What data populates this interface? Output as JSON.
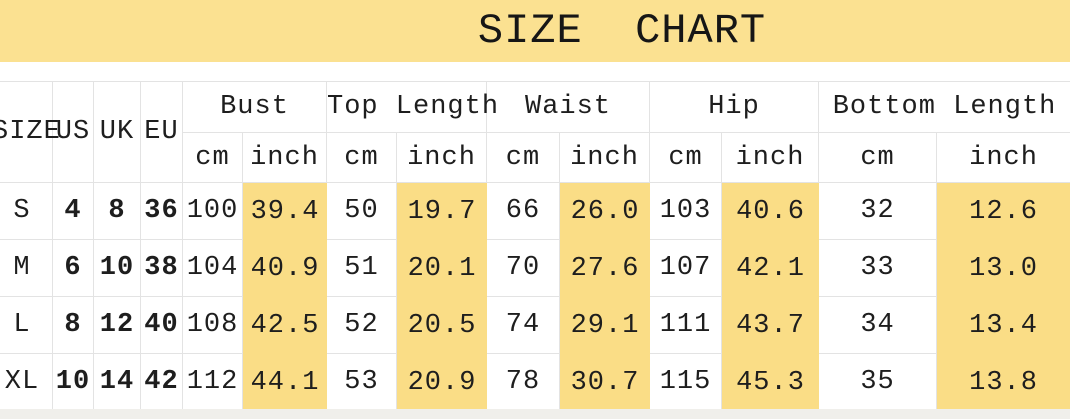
{
  "banner": {
    "title": "SIZE  CHART",
    "background": "#FBE191"
  },
  "table": {
    "corner_headers": [
      "SIZE",
      "US",
      "UK",
      "EU"
    ],
    "groups": [
      {
        "label": "Bust",
        "units": [
          "cm",
          "inch"
        ]
      },
      {
        "label": "Top Length",
        "units": [
          "cm",
          "inch"
        ]
      },
      {
        "label": "Waist",
        "units": [
          "cm",
          "inch"
        ]
      },
      {
        "label": "Hip",
        "units": [
          "cm",
          "inch"
        ]
      },
      {
        "label": "Bottom Length",
        "units": [
          "cm",
          "inch"
        ]
      }
    ],
    "rows": [
      {
        "size": "S",
        "values": [
          "4",
          "8",
          "36",
          "100",
          "39.4",
          "50",
          "19.7",
          "66",
          "26.0",
          "103",
          "40.6",
          "32",
          "12.6"
        ]
      },
      {
        "size": "M",
        "values": [
          "6",
          "10",
          "38",
          "104",
          "40.9",
          "51",
          "20.1",
          "70",
          "27.6",
          "107",
          "42.1",
          "33",
          "13.0"
        ]
      },
      {
        "size": "L",
        "values": [
          "8",
          "12",
          "40",
          "108",
          "42.5",
          "52",
          "20.5",
          "74",
          "29.1",
          "111",
          "43.7",
          "34",
          "13.4"
        ]
      },
      {
        "size": "XL",
        "values": [
          "10",
          "14",
          "42",
          "112",
          "44.1",
          "53",
          "20.9",
          "78",
          "30.7",
          "115",
          "45.3",
          "35",
          "13.8"
        ]
      }
    ],
    "highlight_color": "#FADD86",
    "grid_color": "#E3E3E3"
  },
  "chart_data": {
    "type": "table",
    "title": "SIZE CHART",
    "columns": [
      "SIZE",
      "US",
      "UK",
      "EU",
      "Bust cm",
      "Bust inch",
      "Top Length cm",
      "Top Length inch",
      "Waist cm",
      "Waist inch",
      "Hip cm",
      "Hip inch",
      "Bottom Length cm",
      "Bottom Length inch"
    ],
    "rows": [
      [
        "S",
        4,
        8,
        36,
        100,
        39.4,
        50,
        19.7,
        66,
        26.0,
        103,
        40.6,
        32,
        12.6
      ],
      [
        "M",
        6,
        10,
        38,
        104,
        40.9,
        51,
        20.1,
        70,
        27.6,
        107,
        42.1,
        33,
        13.0
      ],
      [
        "L",
        8,
        12,
        40,
        108,
        42.5,
        52,
        20.5,
        74,
        29.1,
        111,
        43.7,
        34,
        13.4
      ],
      [
        "XL",
        10,
        14,
        42,
        112,
        44.1,
        53,
        20.9,
        78,
        30.7,
        115,
        45.3,
        35,
        13.8
      ]
    ],
    "layout_hints": {
      "highlighted_columns": [
        "Bust inch",
        "Top Length inch",
        "Waist inch",
        "Hip inch",
        "Bottom Length inch"
      ],
      "highlight_color": "#FADD86",
      "banner_color": "#FBE191",
      "grid": true
    }
  }
}
